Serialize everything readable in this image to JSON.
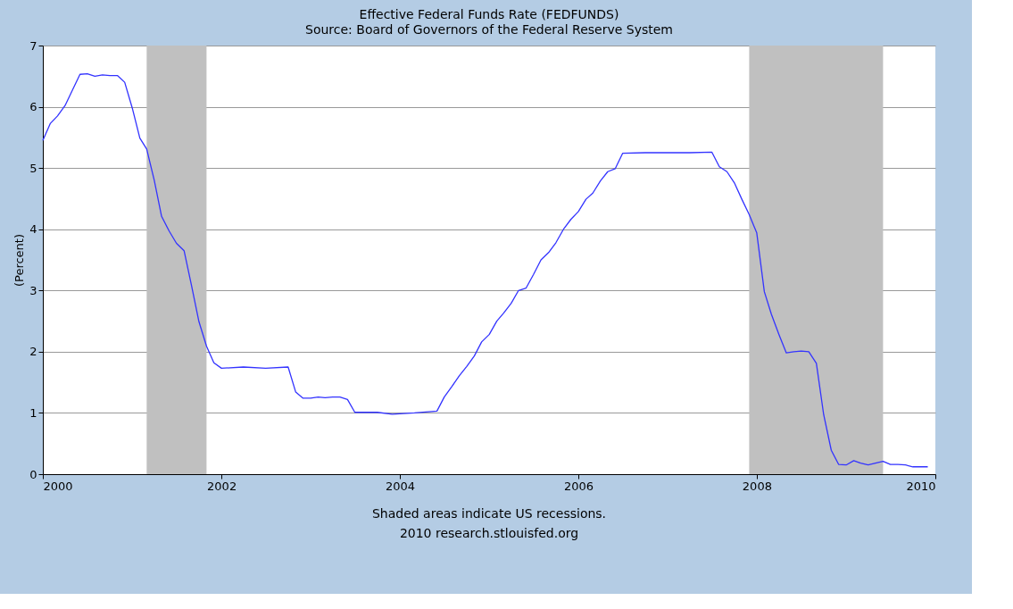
{
  "chart_data": {
    "type": "line",
    "title": "Effective Federal Funds Rate (FEDFUNDS)",
    "subtitle": "Source: Board of Governors of the Federal Reserve System",
    "ylabel": "(Percent)",
    "x": [
      "2000-01",
      "2000-02",
      "2000-03",
      "2000-04",
      "2000-05",
      "2000-06",
      "2000-07",
      "2000-08",
      "2000-09",
      "2000-10",
      "2000-11",
      "2000-12",
      "2001-01",
      "2001-02",
      "2001-03",
      "2001-04",
      "2001-05",
      "2001-06",
      "2001-07",
      "2001-08",
      "2001-09",
      "2001-10",
      "2001-11",
      "2001-12",
      "2002-01",
      "2002-04",
      "2002-07",
      "2002-10",
      "2002-11",
      "2002-12",
      "2003-01",
      "2003-02",
      "2003-03",
      "2003-04",
      "2003-05",
      "2003-06",
      "2003-07",
      "2003-10",
      "2003-12",
      "2004-03",
      "2004-06",
      "2004-07",
      "2004-08",
      "2004-09",
      "2004-10",
      "2004-11",
      "2004-12",
      "2005-01",
      "2005-02",
      "2005-03",
      "2005-04",
      "2005-05",
      "2005-06",
      "2005-07",
      "2005-08",
      "2005-09",
      "2005-10",
      "2005-11",
      "2005-12",
      "2006-01",
      "2006-02",
      "2006-03",
      "2006-04",
      "2006-05",
      "2006-06",
      "2006-07",
      "2006-10",
      "2007-01",
      "2007-04",
      "2007-07",
      "2007-08",
      "2007-09",
      "2007-10",
      "2007-11",
      "2007-12",
      "2008-01",
      "2008-02",
      "2008-03",
      "2008-04",
      "2008-05",
      "2008-06",
      "2008-07",
      "2008-08",
      "2008-09",
      "2008-10",
      "2008-11",
      "2008-12",
      "2009-01",
      "2009-02",
      "2009-03",
      "2009-04",
      "2009-05",
      "2009-06",
      "2009-07",
      "2009-08",
      "2009-09",
      "2009-10",
      "2009-11",
      "2009-12"
    ],
    "series": [
      {
        "color": "#3333ff",
        "values": [
          5.45,
          5.73,
          5.85,
          6.02,
          6.27,
          6.53,
          6.54,
          6.5,
          6.52,
          6.51,
          6.51,
          6.4,
          5.98,
          5.49,
          5.31,
          4.8,
          4.21,
          3.97,
          3.77,
          3.65,
          3.07,
          2.49,
          2.09,
          1.82,
          1.73,
          1.75,
          1.73,
          1.75,
          1.34,
          1.24,
          1.24,
          1.26,
          1.25,
          1.26,
          1.26,
          1.22,
          1.01,
          1.01,
          0.98,
          1.0,
          1.03,
          1.26,
          1.43,
          1.61,
          1.76,
          1.93,
          2.16,
          2.28,
          2.5,
          2.63,
          2.79,
          3.0,
          3.04,
          3.26,
          3.5,
          3.62,
          3.78,
          4.0,
          4.16,
          4.29,
          4.49,
          4.59,
          4.79,
          4.94,
          4.99,
          5.24,
          5.25,
          5.25,
          5.25,
          5.26,
          5.02,
          4.94,
          4.76,
          4.49,
          4.24,
          3.94,
          2.98,
          2.61,
          2.28,
          1.98,
          2.0,
          2.01,
          2.0,
          1.81,
          0.97,
          0.39,
          0.16,
          0.15,
          0.22,
          0.18,
          0.15,
          0.18,
          0.21,
          0.16,
          0.16,
          0.15,
          0.12,
          0.12,
          0.12
        ]
      }
    ],
    "xlim": [
      "2000-01",
      "2010-01"
    ],
    "xticks": [
      {
        "value": "2000-01",
        "label": "2000"
      },
      {
        "value": "2002-01",
        "label": "2002"
      },
      {
        "value": "2004-01",
        "label": "2004"
      },
      {
        "value": "2006-01",
        "label": "2006"
      },
      {
        "value": "2008-01",
        "label": "2008"
      },
      {
        "value": "2010-01",
        "label": "2010"
      }
    ],
    "ylim": [
      0,
      7
    ],
    "yticks": [
      0,
      1,
      2,
      3,
      4,
      5,
      6,
      7
    ],
    "grid": "y",
    "bands": [
      {
        "axis": "x",
        "from": "2001-03",
        "to": "2001-11",
        "color": "#c0c0c0"
      },
      {
        "axis": "x",
        "from": "2007-12",
        "to": "2009-06",
        "color": "#c0c0c0"
      }
    ],
    "annotations": [
      "Shaded areas indicate US recessions.",
      "2010 research.stlouisfed.org"
    ]
  }
}
